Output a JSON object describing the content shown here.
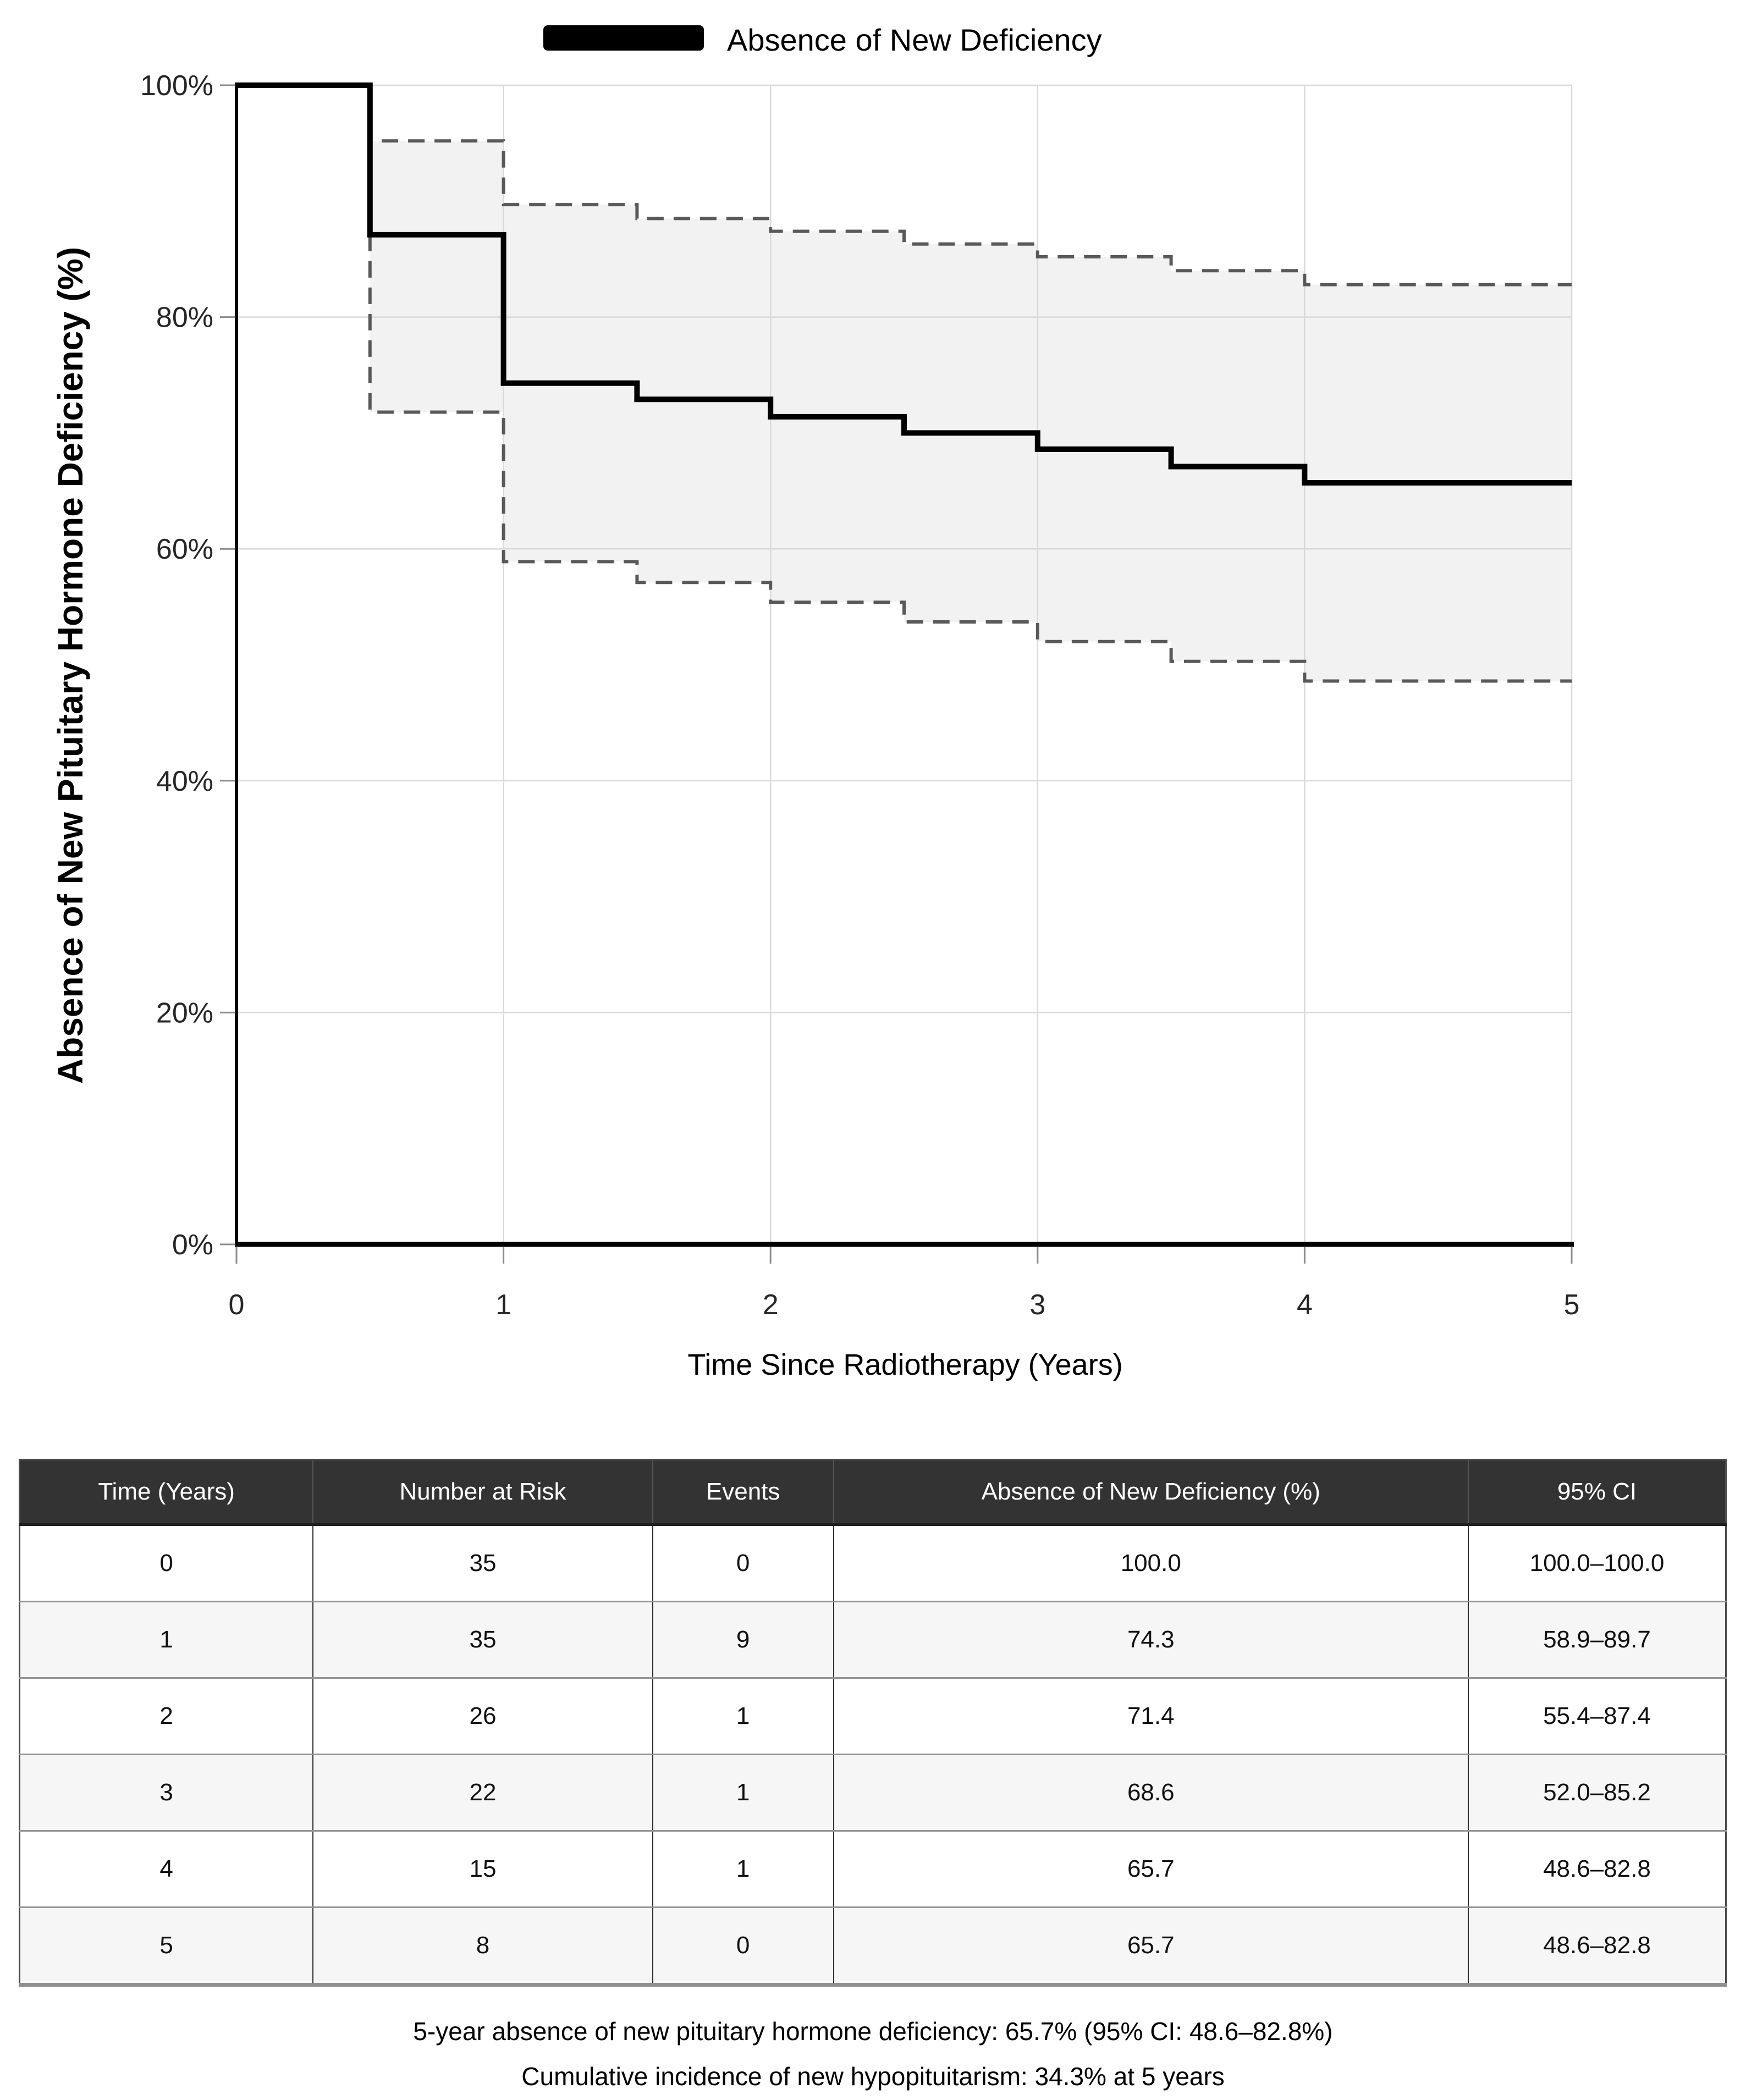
{
  "legend": {
    "label": "Absence of New Deficiency"
  },
  "chart_data": {
    "type": "line",
    "subtype": "kaplan-meier-step",
    "title": "",
    "xlabel": "Time Since Radiotherapy (Years)",
    "ylabel": "Absence of New Pituitary Hormone Deficiency (%)",
    "xlim": [
      0,
      5
    ],
    "ylim": [
      0,
      100
    ],
    "grid": true,
    "legend_position": "top-center",
    "x_ticks": [
      {
        "label": "0",
        "value": 0
      },
      {
        "label": "1",
        "value": 1
      },
      {
        "label": "2",
        "value": 2
      },
      {
        "label": "3",
        "value": 3
      },
      {
        "label": "4",
        "value": 4
      },
      {
        "label": "5",
        "value": 5
      }
    ],
    "y_ticks": [
      {
        "label": "100%",
        "value": 100
      },
      {
        "label": "80%",
        "value": 80
      },
      {
        "label": "60%",
        "value": 60
      },
      {
        "label": "40%",
        "value": 40
      },
      {
        "label": "20%",
        "value": 20
      },
      {
        "label": "0%",
        "value": 0
      }
    ],
    "colors": {
      "line": "#000000",
      "ci_line": "#595959",
      "ci_band": "#f2f2f2",
      "grid": "#d9d9d9",
      "axis": "#000000",
      "tick": "#8c8c8c",
      "tick_label": "#262626"
    },
    "series": [
      {
        "name": "Absence of New Deficiency",
        "style": "solid-step",
        "vertices": [
          [
            0,
            100
          ],
          [
            0.5,
            100
          ],
          [
            0.5,
            87.1
          ],
          [
            1,
            87.1
          ],
          [
            1,
            74.3
          ],
          [
            1.5,
            74.3
          ],
          [
            1.5,
            72.9
          ],
          [
            2,
            72.9
          ],
          [
            2,
            71.4
          ],
          [
            2.5,
            71.4
          ],
          [
            2.5,
            70.0
          ],
          [
            3,
            70.0
          ],
          [
            3,
            68.6
          ],
          [
            3.5,
            68.6
          ],
          [
            3.5,
            67.1
          ],
          [
            4,
            67.1
          ],
          [
            4,
            65.7
          ],
          [
            5,
            65.7
          ]
        ]
      },
      {
        "name": "95% CI upper",
        "style": "dashed-step",
        "vertices": [
          [
            0.5,
            87.1
          ],
          [
            0.5,
            95.2
          ],
          [
            1,
            95.2
          ],
          [
            1,
            89.7
          ],
          [
            1.5,
            89.7
          ],
          [
            1.5,
            88.5
          ],
          [
            2,
            88.5
          ],
          [
            2,
            87.4
          ],
          [
            2.5,
            87.4
          ],
          [
            2.5,
            86.3
          ],
          [
            3,
            86.3
          ],
          [
            3,
            85.2
          ],
          [
            3.5,
            85.2
          ],
          [
            3.5,
            84.0
          ],
          [
            4,
            84.0
          ],
          [
            4,
            82.8
          ],
          [
            5,
            82.8
          ]
        ]
      },
      {
        "name": "95% CI lower",
        "style": "dashed-step",
        "vertices": [
          [
            0.5,
            87.1
          ],
          [
            0.5,
            71.8
          ],
          [
            1,
            71.8
          ],
          [
            1,
            58.9
          ],
          [
            1.5,
            58.9
          ],
          [
            1.5,
            57.1
          ],
          [
            2,
            57.1
          ],
          [
            2,
            55.4
          ],
          [
            2.5,
            55.4
          ],
          [
            2.5,
            53.7
          ],
          [
            3,
            53.7
          ],
          [
            3,
            52.0
          ],
          [
            3.5,
            52.0
          ],
          [
            3.5,
            50.3
          ],
          [
            4,
            50.3
          ],
          [
            4,
            48.6
          ],
          [
            5,
            48.6
          ]
        ]
      }
    ]
  },
  "table": {
    "headers": [
      "Time (Years)",
      "Number at Risk",
      "Events",
      "Absence of New Deficiency (%)",
      "95% CI"
    ],
    "col_widths": [
      "17.2%",
      "19.9%",
      "10.6%",
      "37.2%",
      "15.1%"
    ],
    "rows": [
      [
        "0",
        "35",
        "0",
        "100.0",
        "100.0–100.0"
      ],
      [
        "1",
        "35",
        "9",
        "74.3",
        "58.9–89.7"
      ],
      [
        "2",
        "26",
        "1",
        "71.4",
        "55.4–87.4"
      ],
      [
        "3",
        "22",
        "1",
        "68.6",
        "52.0–85.2"
      ],
      [
        "4",
        "15",
        "1",
        "65.7",
        "48.6–82.8"
      ],
      [
        "5",
        "8",
        "0",
        "65.7",
        "48.6–82.8"
      ]
    ]
  },
  "footer": {
    "line1": "5-year absence of new pituitary hormone deficiency: 65.7% (95% CI: 48.6–82.8%)",
    "line2": "Cumulative incidence of new hypopituitarism: 34.3% at 5 years"
  }
}
